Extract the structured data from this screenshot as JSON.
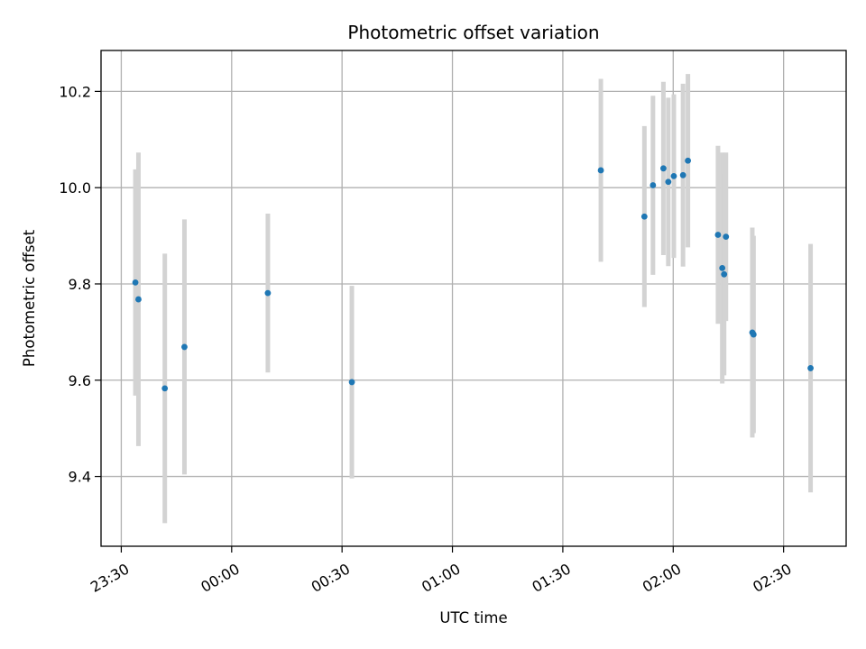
{
  "chart_data": {
    "type": "scatter",
    "title": "Photometric offset variation",
    "xlabel": "UTC time",
    "ylabel": "Photometric offset",
    "grid": true,
    "x_axis_type": "time",
    "xlim": [
      "2024-01-01T23:24:30",
      "2024-01-02T02:47:00"
    ],
    "ylim": [
      9.255,
      10.285
    ],
    "x_ticks": [
      {
        "value": "2024-01-01T23:30:00",
        "label": "23:30"
      },
      {
        "value": "2024-01-02T00:00:00",
        "label": "00:00"
      },
      {
        "value": "2024-01-02T00:30:00",
        "label": "00:30"
      },
      {
        "value": "2024-01-02T01:00:00",
        "label": "01:00"
      },
      {
        "value": "2024-01-02T01:30:00",
        "label": "01:30"
      },
      {
        "value": "2024-01-02T02:00:00",
        "label": "02:00"
      },
      {
        "value": "2024-01-02T02:30:00",
        "label": "02:30"
      }
    ],
    "y_ticks": [
      {
        "value": 9.4,
        "label": "9.4"
      },
      {
        "value": 9.6,
        "label": "9.6"
      },
      {
        "value": 9.8,
        "label": "9.8"
      },
      {
        "value": 10.0,
        "label": "10.0"
      },
      {
        "value": 10.2,
        "label": "10.2"
      }
    ],
    "point_color": "#1f77b4",
    "errorbar_color": "#d3d3d3",
    "points": [
      {
        "x": "2024-01-01T23:33:50",
        "y": 9.803,
        "err": 0.235
      },
      {
        "x": "2024-01-01T23:34:40",
        "y": 9.768,
        "err": 0.305
      },
      {
        "x": "2024-01-01T23:41:50",
        "y": 9.583,
        "err": 0.28
      },
      {
        "x": "2024-01-01T23:47:10",
        "y": 9.669,
        "err": 0.265
      },
      {
        "x": "2024-01-02T00:09:50",
        "y": 9.781,
        "err": 0.165
      },
      {
        "x": "2024-01-02T00:32:40",
        "y": 9.596,
        "err": 0.2
      },
      {
        "x": "2024-01-02T01:40:20",
        "y": 10.036,
        "err": 0.19
      },
      {
        "x": "2024-01-02T01:52:10",
        "y": 9.94,
        "err": 0.188
      },
      {
        "x": "2024-01-02T01:54:30",
        "y": 10.005,
        "err": 0.186
      },
      {
        "x": "2024-01-02T01:57:20",
        "y": 10.04,
        "err": 0.18
      },
      {
        "x": "2024-01-02T01:58:40",
        "y": 10.012,
        "err": 0.175
      },
      {
        "x": "2024-01-02T02:00:10",
        "y": 10.024,
        "err": 0.17
      },
      {
        "x": "2024-01-02T02:02:40",
        "y": 10.026,
        "err": 0.19
      },
      {
        "x": "2024-01-02T02:04:00",
        "y": 10.056,
        "err": 0.18
      },
      {
        "x": "2024-01-02T02:12:10",
        "y": 9.902,
        "err": 0.185
      },
      {
        "x": "2024-01-02T02:13:20",
        "y": 9.833,
        "err": 0.24
      },
      {
        "x": "2024-01-02T02:13:50",
        "y": 9.82,
        "err": 0.21
      },
      {
        "x": "2024-01-02T02:14:20",
        "y": 9.898,
        "err": 0.175
      },
      {
        "x": "2024-01-02T02:21:30",
        "y": 9.699,
        "err": 0.218
      },
      {
        "x": "2024-01-02T02:21:50",
        "y": 9.695,
        "err": 0.205
      },
      {
        "x": "2024-01-02T02:37:20",
        "y": 9.625,
        "err": 0.258
      }
    ]
  }
}
